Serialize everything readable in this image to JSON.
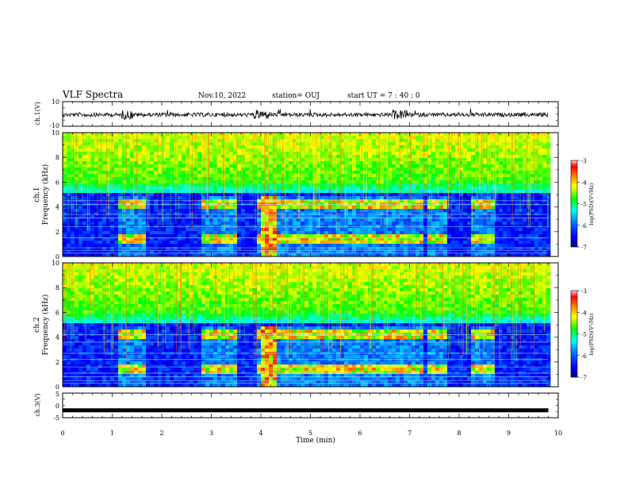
{
  "header": {
    "title": "VLF Spectra",
    "date": "Nov.10, 2022",
    "station": "station= OUJ",
    "start": "start  UT =   7 : 40 : 0"
  },
  "chart_data": [
    {
      "type": "line",
      "name": "ch1-waveform",
      "ylabel": "ch.1(V)",
      "ylim": [
        -10,
        10
      ],
      "ytick_labels": [
        "10",
        "-10"
      ],
      "xlim": [
        0,
        10
      ],
      "description_shown": "noisy waveform centred near 0 V with bursts around 1.3, 4.0, 6.8 min"
    },
    {
      "type": "heatmap",
      "name": "ch1-spectrogram",
      "ylabel": "Frequency (kHz)",
      "channel_label": "ch.1",
      "xlim": [
        0,
        10
      ],
      "ylim": [
        0,
        10
      ],
      "yticks": [
        "0",
        "2",
        "4",
        "6",
        "8",
        "10"
      ],
      "colorbar": {
        "min": -7,
        "max": -3,
        "ticks": [
          "-3",
          "-4",
          "-5",
          "-6",
          "-7"
        ],
        "label": "log(PSD)(V²/Hz)"
      },
      "data_end_min": 9.8
    },
    {
      "type": "heatmap",
      "name": "ch2-spectrogram",
      "ylabel": "Frequency (kHz)",
      "channel_label": "ch.2",
      "xlim": [
        0,
        10
      ],
      "ylim": [
        0,
        10
      ],
      "yticks": [
        "0",
        "2",
        "4",
        "6",
        "8",
        "10"
      ],
      "colorbar": {
        "min": -7,
        "max": -3,
        "ticks": [
          "-3",
          "-4",
          "-5",
          "-6",
          "-7"
        ],
        "label": "log(PSD)(V²/Hz)"
      },
      "data_end_min": 9.8
    },
    {
      "type": "line",
      "name": "ch3-waveform",
      "ylabel": "ch.3(V)",
      "ylim": [
        -5,
        5
      ],
      "ytick_labels": [
        "5",
        "0",
        "-5"
      ],
      "xlim": [
        0,
        10
      ],
      "value_shown": -2
    }
  ],
  "xaxis": {
    "label": "Time (min)",
    "ticks": [
      "0",
      "1",
      "2",
      "3",
      "4",
      "5",
      "6",
      "7",
      "8",
      "9",
      "10"
    ]
  },
  "colors": {
    "colormap": [
      "#00008a",
      "#0000ff",
      "#0080ff",
      "#00ffff",
      "#00ff00",
      "#ffff00",
      "#ff8000",
      "#ff0000",
      "#ffc0c0"
    ]
  }
}
